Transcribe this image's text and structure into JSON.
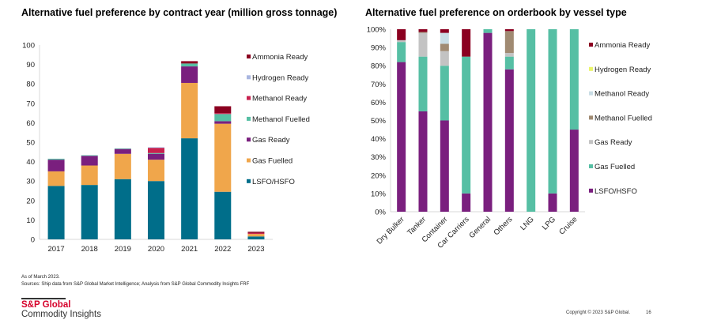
{
  "chart_data": [
    {
      "type": "bar",
      "stacked": true,
      "title": "Alternative fuel preference by contract year (million gross tonnage)",
      "xlabel": "",
      "ylabel": "",
      "ylim": [
        0,
        100
      ],
      "yticks": [
        "0",
        "10",
        "20",
        "30",
        "40",
        "50",
        "60",
        "70",
        "80",
        "90",
        "100"
      ],
      "categories": [
        "2017",
        "2018",
        "2019",
        "2020",
        "2021",
        "2022",
        "2023"
      ],
      "legend_position": "right",
      "series": [
        {
          "name": "LSFO/HSFO",
          "color": "#006e8a",
          "values": [
            27.5,
            28,
            31,
            30,
            52,
            24.5,
            1.5
          ]
        },
        {
          "name": "Gas Fuelled",
          "color": "#f0a64b",
          "values": [
            7.5,
            10,
            13,
            11,
            28.5,
            35,
            1.3
          ]
        },
        {
          "name": "Gas Ready",
          "color": "#7a1f7e",
          "values": [
            6,
            5,
            2.5,
            3,
            8.5,
            1.3,
            0
          ]
        },
        {
          "name": "Methanol Fuelled",
          "color": "#56bfa4",
          "values": [
            0.5,
            0.3,
            0.3,
            0.4,
            1.5,
            3.7,
            0
          ]
        },
        {
          "name": "Methanol Ready",
          "color": "#c8214f",
          "values": [
            0,
            0,
            0,
            2.7,
            0,
            0.5,
            0.5
          ]
        },
        {
          "name": "Hydrogen Ready",
          "color": "#a9b6e0",
          "values": [
            0,
            0,
            0,
            0.3,
            0,
            0,
            0
          ]
        },
        {
          "name": "Ammonia Ready",
          "color": "#8b0020",
          "values": [
            0,
            0,
            0,
            0,
            1.2,
            3.5,
            0.6
          ]
        }
      ]
    },
    {
      "type": "bar",
      "stacked": true,
      "percent": true,
      "title": "Alternative fuel preference on orderbook by vessel type",
      "xlabel": "",
      "ylabel": "",
      "ylim": [
        0,
        100
      ],
      "yticks": [
        "0%",
        "10%",
        "20%",
        "30%",
        "40%",
        "50%",
        "60%",
        "70%",
        "80%",
        "90%",
        "100%"
      ],
      "categories": [
        "Dry Bulker",
        "Tanker",
        "Container",
        "Car Carriers",
        "General",
        "Others",
        "LNG",
        "LPG",
        "Cruise"
      ],
      "legend_position": "right",
      "series": [
        {
          "name": "LSFO/HSFO",
          "color": "#7a1f7e",
          "values": [
            82,
            55,
            50,
            10,
            98,
            78,
            0,
            10,
            45
          ]
        },
        {
          "name": "Gas Fuelled",
          "color": "#56bfa4",
          "values": [
            11,
            30,
            30,
            75,
            2,
            7,
            100,
            90,
            55
          ]
        },
        {
          "name": "Gas Ready",
          "color": "#c3c3c3",
          "values": [
            1,
            13,
            8,
            0,
            0,
            2,
            0,
            0,
            0
          ]
        },
        {
          "name": "Methanol Fuelled",
          "color": "#a08a72",
          "values": [
            0,
            0.5,
            4,
            0,
            0,
            12,
            0,
            0,
            0
          ]
        },
        {
          "name": "Methanol Ready",
          "color": "#c9dde5",
          "values": [
            0,
            0,
            6,
            0,
            0,
            0,
            0,
            0,
            0
          ]
        },
        {
          "name": "Hydrogen Ready",
          "color": "#eaf56a",
          "values": [
            0,
            0,
            0,
            0,
            0,
            0,
            0,
            0,
            0
          ]
        },
        {
          "name": "Ammonia Ready",
          "color": "#8b0020",
          "values": [
            6,
            1.5,
            2,
            15,
            0,
            1,
            0,
            0,
            0
          ]
        }
      ]
    }
  ],
  "notes": {
    "as_of": "As of March 2023.",
    "sources": "Sources: Ship data from S&P Global Market Intelligence; Analysis from S&P Global Commodity Insights FRF"
  },
  "footer": {
    "logo_line1": "S&P Global",
    "logo_line2": "Commodity Insights",
    "copyright": "Copyright © 2023 S&P Global.",
    "page_number": "16"
  }
}
